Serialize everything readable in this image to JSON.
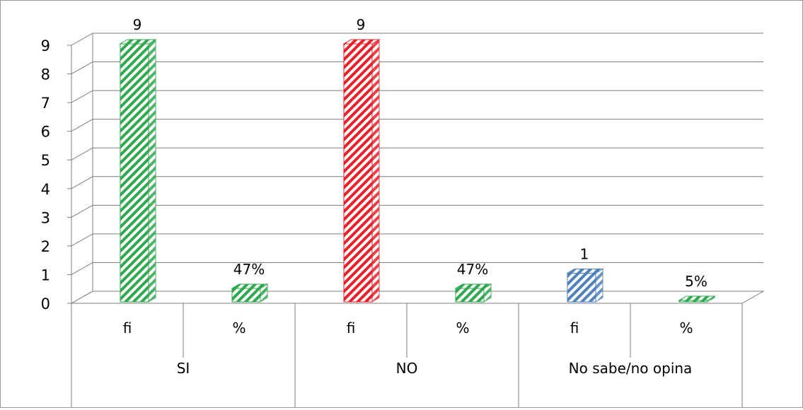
{
  "chart_data": {
    "type": "bar",
    "title": "",
    "xlabel": "",
    "ylabel": "",
    "ylim": [
      0,
      9
    ],
    "yticks": [
      "0",
      "1",
      "2",
      "3",
      "4",
      "5",
      "6",
      "7",
      "8",
      "9"
    ],
    "grid": true,
    "legend": "none",
    "groups": [
      {
        "label": "SI",
        "bars": [
          {
            "sublabel": "fi",
            "value": 9,
            "data_label": "9",
            "color": "#2fa84f"
          },
          {
            "sublabel": "%",
            "value": 0.47,
            "data_label": "47%",
            "color": "#2fa84f"
          }
        ]
      },
      {
        "label": "NO",
        "bars": [
          {
            "sublabel": "fi",
            "value": 9,
            "data_label": "9",
            "color": "#e8202a"
          },
          {
            "sublabel": "%",
            "value": 0.47,
            "data_label": "47%",
            "color": "#2fa84f"
          }
        ]
      },
      {
        "label": "No sabe/no opina",
        "bars": [
          {
            "sublabel": "fi",
            "value": 1,
            "data_label": "1",
            "color": "#4f81bd"
          },
          {
            "sublabel": "%",
            "value": 0.05,
            "data_label": "5%",
            "color": "#2fa84f"
          }
        ]
      }
    ]
  }
}
